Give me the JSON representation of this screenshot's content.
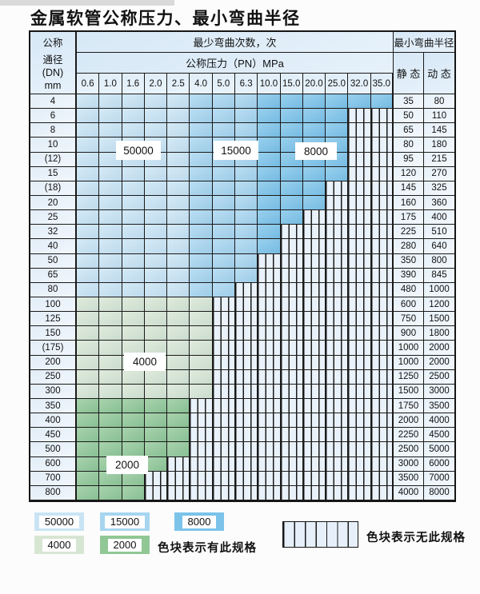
{
  "title": "金属软管公称压力、最小弯曲半径",
  "table": {
    "dn_header_lines": [
      "公称",
      "通径",
      "(DN)",
      "mm"
    ],
    "bend_cycles_header": "最少弯曲次数，次",
    "pn_header": "公称压力（PN）MPa",
    "min_radius_header": "最小弯曲半径",
    "static_header": "静 态",
    "dynamic_header": "动 态",
    "pressure_columns": [
      "0.6",
      "1.0",
      "1.6",
      "2.0",
      "2.5",
      "4.0",
      "5.0",
      "6.3",
      "10.0",
      "15.0",
      "20.0",
      "25.0",
      "32.0",
      "35.0"
    ],
    "region_labels": [
      "50000",
      "15000",
      "8000",
      "4000",
      "2000"
    ],
    "rows": [
      {
        "dn": "4",
        "colored_until": 13,
        "palette": "blue",
        "static": "35",
        "dynamic": "80"
      },
      {
        "dn": "6",
        "colored_until": 11,
        "palette": "blue",
        "static": "50",
        "dynamic": "110"
      },
      {
        "dn": "8",
        "colored_until": 11,
        "palette": "blue",
        "static": "65",
        "dynamic": "145"
      },
      {
        "dn": "10",
        "colored_until": 11,
        "palette": "blue",
        "static": "80",
        "dynamic": "180"
      },
      {
        "dn": "(12)",
        "colored_until": 11,
        "palette": "blue",
        "static": "95",
        "dynamic": "215"
      },
      {
        "dn": "15",
        "colored_until": 11,
        "palette": "blue",
        "static": "120",
        "dynamic": "270"
      },
      {
        "dn": "(18)",
        "colored_until": 10,
        "palette": "blue",
        "static": "145",
        "dynamic": "325"
      },
      {
        "dn": "20",
        "colored_until": 10,
        "palette": "blue",
        "static": "160",
        "dynamic": "360"
      },
      {
        "dn": "25",
        "colored_until": 9,
        "palette": "blue",
        "static": "175",
        "dynamic": "400"
      },
      {
        "dn": "32",
        "colored_until": 8,
        "palette": "blue",
        "static": "225",
        "dynamic": "510"
      },
      {
        "dn": "40",
        "colored_until": 8,
        "palette": "blue",
        "static": "280",
        "dynamic": "640"
      },
      {
        "dn": "50",
        "colored_until": 7,
        "palette": "blue",
        "static": "350",
        "dynamic": "800"
      },
      {
        "dn": "65",
        "colored_until": 7,
        "palette": "blue",
        "static": "390",
        "dynamic": "845"
      },
      {
        "dn": "80",
        "colored_until": 6,
        "palette": "blue",
        "static": "480",
        "dynamic": "1000"
      },
      {
        "dn": "100",
        "colored_until": 5,
        "palette": "green4000",
        "static": "600",
        "dynamic": "1200"
      },
      {
        "dn": "125",
        "colored_until": 5,
        "palette": "green4000",
        "static": "750",
        "dynamic": "1500"
      },
      {
        "dn": "150",
        "colored_until": 5,
        "palette": "green4000",
        "static": "900",
        "dynamic": "1800"
      },
      {
        "dn": "(175)",
        "colored_until": 5,
        "palette": "green4000",
        "static": "1000",
        "dynamic": "2000"
      },
      {
        "dn": "200",
        "colored_until": 5,
        "palette": "green4000",
        "static": "1000",
        "dynamic": "2000"
      },
      {
        "dn": "250",
        "colored_until": 5,
        "palette": "green4000",
        "static": "1250",
        "dynamic": "2500"
      },
      {
        "dn": "300",
        "colored_until": 5,
        "palette": "green4000",
        "static": "1500",
        "dynamic": "3000"
      },
      {
        "dn": "350",
        "colored_until": 4,
        "palette": "green2000",
        "static": "1750",
        "dynamic": "3500"
      },
      {
        "dn": "400",
        "colored_until": 4,
        "palette": "green2000",
        "static": "2000",
        "dynamic": "4000"
      },
      {
        "dn": "450",
        "colored_until": 4,
        "palette": "green2000",
        "static": "2250",
        "dynamic": "4500"
      },
      {
        "dn": "500",
        "colored_until": 4,
        "palette": "green2000",
        "static": "2500",
        "dynamic": "5000"
      },
      {
        "dn": "600",
        "colored_until": 3,
        "palette": "green2000",
        "static": "3000",
        "dynamic": "6000"
      },
      {
        "dn": "700",
        "colored_until": 2,
        "palette": "green2000",
        "static": "3500",
        "dynamic": "7000"
      },
      {
        "dn": "800",
        "colored_until": 2,
        "palette": "green2000",
        "static": "4000",
        "dynamic": "8000"
      }
    ]
  },
  "colors": {
    "c50000": "#c9e4f4",
    "c15000": "#a7d5ef",
    "c8000": "#7cc3e9",
    "c4000": "#d7e6d3",
    "c2000": "#90c795",
    "hatch_bg": "#e9f1fa",
    "grid": "#1a1a1a"
  },
  "legend": {
    "has_spec_items": [
      {
        "label": "50000",
        "color_key": "c50000"
      },
      {
        "label": "15000",
        "color_key": "c15000"
      },
      {
        "label": "8000",
        "color_key": "c8000"
      },
      {
        "label": "4000",
        "color_key": "c4000"
      },
      {
        "label": "2000",
        "color_key": "c2000"
      }
    ],
    "has_spec_text": "色块表示有此规格",
    "no_spec_text": "色块表示无此规格"
  }
}
